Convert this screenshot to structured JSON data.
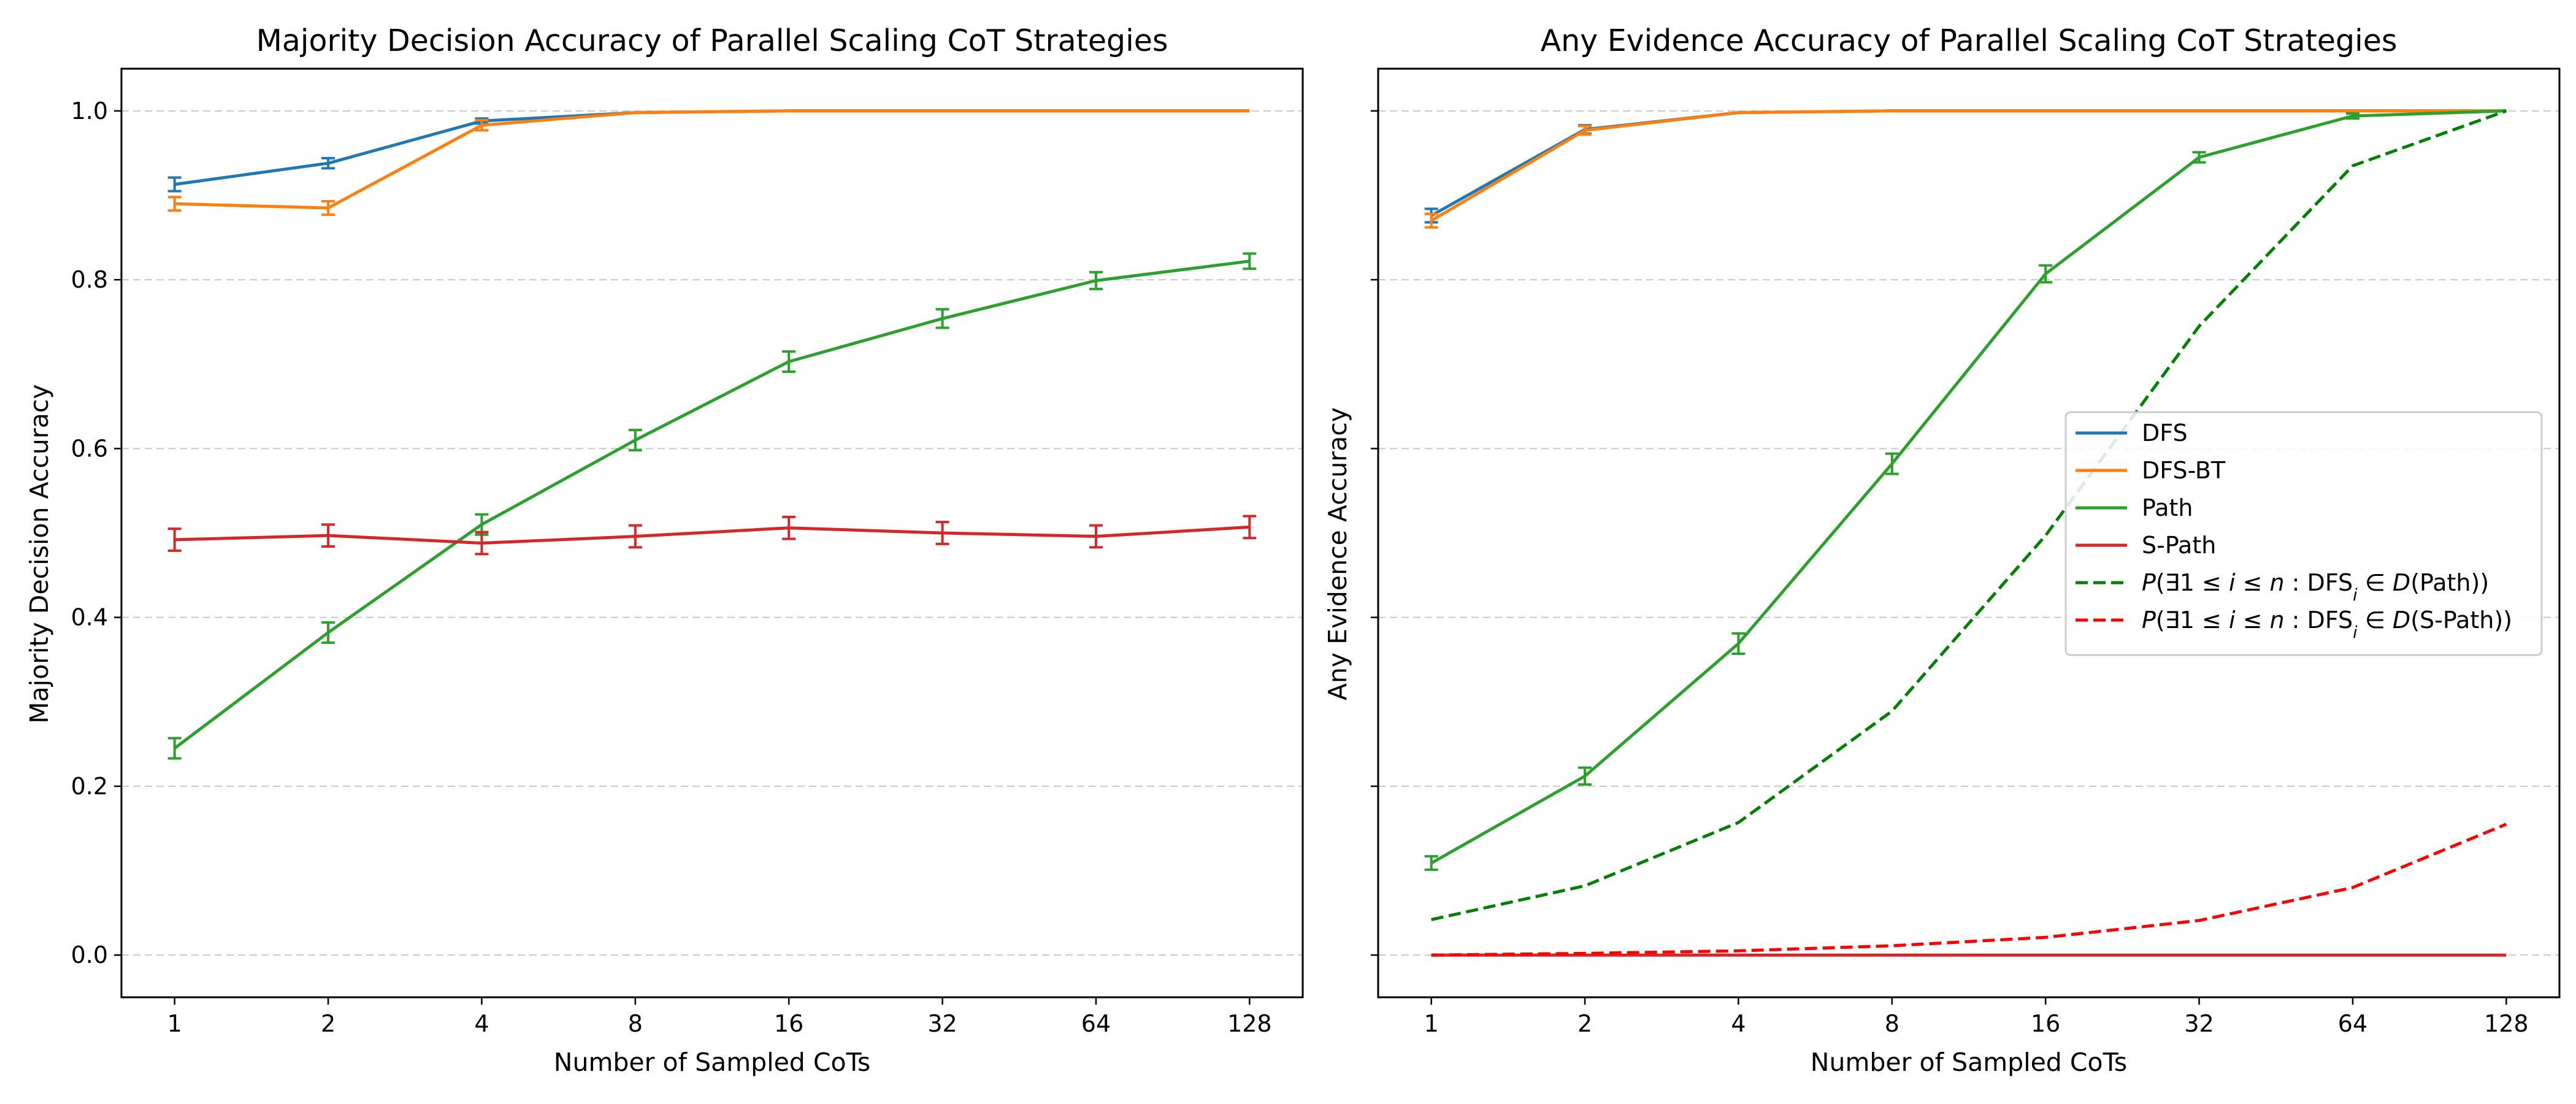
{
  "chart_data": [
    {
      "type": "line",
      "title": "Majority Decision Accuracy of Parallel Scaling CoT Strategies",
      "xlabel": "Number of Sampled CoTs",
      "ylabel": "Majority Decision Accuracy",
      "x": [
        1,
        2,
        4,
        8,
        16,
        32,
        64,
        128
      ],
      "x_ticklabels": [
        "1",
        "2",
        "4",
        "8",
        "16",
        "32",
        "64",
        "128"
      ],
      "x_scale": "log2",
      "ylim": [
        -0.05,
        1.05
      ],
      "y_ticks": [
        0.0,
        0.2,
        0.4,
        0.6,
        0.8,
        1.0
      ],
      "y_ticklabels": [
        "0.0",
        "0.2",
        "0.4",
        "0.6",
        "0.8",
        "1.0"
      ],
      "grid": "horizontal dashed",
      "series": [
        {
          "name": "DFS",
          "color": "#1f77b4",
          "style": "solid",
          "values": [
            0.913,
            0.938,
            0.988,
            0.998,
            1.0,
            1.0,
            1.0,
            1.0
          ],
          "errors": [
            0.008,
            0.006,
            0.003,
            0.0,
            0.0,
            0.0,
            0.0,
            0.0
          ]
        },
        {
          "name": "DFS-BT",
          "color": "#ff7f0e",
          "style": "solid",
          "values": [
            0.89,
            0.885,
            0.983,
            0.998,
            1.0,
            1.0,
            1.0,
            1.0
          ],
          "errors": [
            0.008,
            0.008,
            0.006,
            0.0,
            0.0,
            0.0,
            0.0,
            0.0
          ]
        },
        {
          "name": "Path",
          "color": "#2ca02c",
          "style": "solid",
          "values": [
            0.245,
            0.382,
            0.51,
            0.61,
            0.703,
            0.754,
            0.799,
            0.822
          ],
          "errors": [
            0.012,
            0.012,
            0.012,
            0.012,
            0.012,
            0.011,
            0.01,
            0.009
          ]
        },
        {
          "name": "S-Path",
          "color": "#d62728",
          "style": "solid",
          "values": [
            0.492,
            0.497,
            0.488,
            0.496,
            0.506,
            0.5,
            0.496,
            0.507
          ],
          "errors": [
            0.013,
            0.013,
            0.013,
            0.013,
            0.013,
            0.013,
            0.013,
            0.013
          ]
        }
      ]
    },
    {
      "type": "line",
      "title": "Any Evidence Accuracy of Parallel Scaling CoT Strategies",
      "xlabel": "Number of Sampled CoTs",
      "ylabel": "Any Evidence Accuracy",
      "x": [
        1,
        2,
        4,
        8,
        16,
        32,
        64,
        128
      ],
      "x_ticklabels": [
        "1",
        "2",
        "4",
        "8",
        "16",
        "32",
        "64",
        "128"
      ],
      "x_scale": "log2",
      "ylim": [
        -0.05,
        1.05
      ],
      "y_ticks": [
        0.0,
        0.2,
        0.4,
        0.6,
        0.8,
        1.0
      ],
      "shared_y": true,
      "grid": "horizontal dashed",
      "legend": "center-right",
      "series": [
        {
          "name": "DFS",
          "color": "#1f77b4",
          "style": "solid",
          "values": [
            0.876,
            0.978,
            0.998,
            1.0,
            1.0,
            1.0,
            1.0,
            1.0
          ],
          "errors": [
            0.008,
            0.005,
            0.0,
            0.0,
            0.0,
            0.0,
            0.0,
            0.0
          ]
        },
        {
          "name": "DFS-BT",
          "color": "#ff7f0e",
          "style": "solid",
          "values": [
            0.87,
            0.977,
            0.998,
            1.0,
            1.0,
            1.0,
            1.0,
            1.0
          ],
          "errors": [
            0.008,
            0.005,
            0.0,
            0.0,
            0.0,
            0.0,
            0.0,
            0.0
          ]
        },
        {
          "name": "Path",
          "color": "#2ca02c",
          "style": "solid",
          "values": [
            0.109,
            0.212,
            0.369,
            0.582,
            0.807,
            0.945,
            0.994,
            1.0
          ],
          "errors": [
            0.008,
            0.01,
            0.012,
            0.012,
            0.01,
            0.006,
            0.003,
            0.0
          ]
        },
        {
          "name": "S-Path",
          "color": "#d62728",
          "style": "solid",
          "values": [
            0.0,
            0.0,
            0.0,
            0.0,
            0.0,
            0.0,
            0.0,
            0.0
          ]
        },
        {
          "name_parts": [
            "P",
            "(∃1 ≤ ",
            "i",
            " ≤ ",
            "n",
            " : DFS",
            "i",
            " ∈ ",
            "D",
            "(Path))"
          ],
          "color": "#008000",
          "style": "dashed",
          "values": [
            0.042,
            0.082,
            0.157,
            0.289,
            0.497,
            0.745,
            0.935,
            1.0
          ]
        },
        {
          "name_parts": [
            "P",
            "(∃1 ≤ ",
            "i",
            " ≤ ",
            "n",
            " : DFS",
            "i",
            " ∈ ",
            "D",
            "(S-Path))"
          ],
          "color": "#ff0000",
          "style": "dashed",
          "values": [
            0.0,
            0.002,
            0.005,
            0.011,
            0.021,
            0.041,
            0.08,
            0.155
          ]
        }
      ]
    }
  ]
}
